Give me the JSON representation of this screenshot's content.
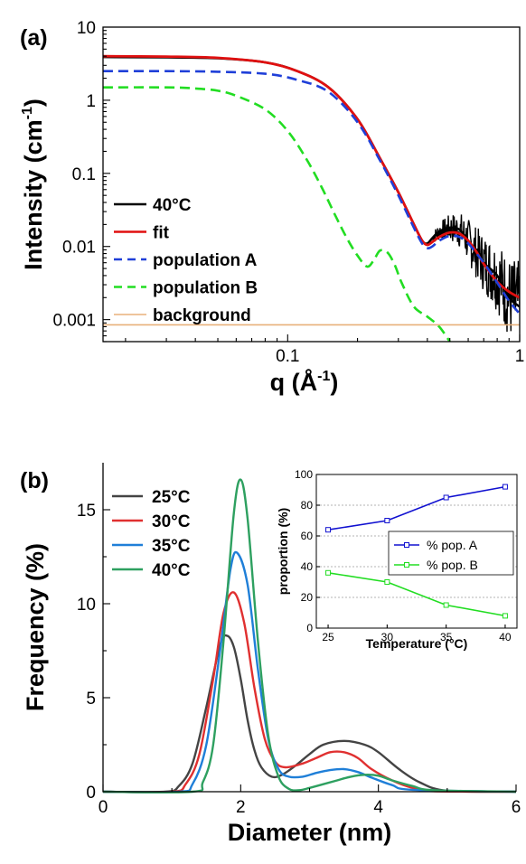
{
  "chart_data": [
    {
      "panel_label": "(a)",
      "type": "line",
      "xscale": "log",
      "yscale": "log",
      "xlabel": "q (Å-1)",
      "ylabel": "Intensity (cm-1)",
      "xlabel_main": "q (Å",
      "xlabel_sup": "-1",
      "xlabel_end": ")",
      "ylabel_main": "Intensity (cm",
      "ylabel_sup": "-1",
      "ylabel_end": ")",
      "xlim": [
        0.016,
        1
      ],
      "ylim": [
        0.0005,
        10
      ],
      "xticks": [
        {
          "v": 0.1,
          "label": "0.1"
        },
        {
          "v": 1,
          "label": "1"
        }
      ],
      "yticks": [
        {
          "v": 0.001,
          "label": "0.001"
        },
        {
          "v": 0.01,
          "label": "0.01"
        },
        {
          "v": 0.1,
          "label": "0.1"
        },
        {
          "v": 1,
          "label": "1"
        },
        {
          "v": 10,
          "label": "10"
        }
      ],
      "legend_position": "left",
      "series": [
        {
          "name": "40°C",
          "color": "#000000",
          "dash": "solid",
          "x": [
            0.016,
            0.03,
            0.05,
            0.08,
            0.11,
            0.15,
            0.2,
            0.25,
            0.3,
            0.35,
            0.38,
            0.4,
            0.42,
            0.45,
            0.5,
            0.55,
            0.6,
            0.7,
            0.8,
            0.9,
            1.0
          ],
          "y": [
            3.9,
            3.85,
            3.75,
            3.3,
            2.5,
            1.5,
            0.55,
            0.16,
            0.055,
            0.02,
            0.012,
            0.011,
            0.013,
            0.016,
            0.018,
            0.017,
            0.012,
            0.006,
            0.004,
            0.002,
            0.0015
          ]
        },
        {
          "name": "fit",
          "color": "#e01010",
          "dash": "solid",
          "x": [
            0.016,
            0.03,
            0.05,
            0.08,
            0.11,
            0.15,
            0.2,
            0.25,
            0.3,
            0.35,
            0.38,
            0.4,
            0.42,
            0.45,
            0.5,
            0.55,
            0.6,
            0.65,
            0.7,
            0.8,
            0.9,
            1.0
          ],
          "y": [
            4.0,
            3.95,
            3.8,
            3.3,
            2.5,
            1.5,
            0.55,
            0.16,
            0.055,
            0.02,
            0.012,
            0.0105,
            0.0115,
            0.0135,
            0.0155,
            0.015,
            0.012,
            0.0085,
            0.0058,
            0.0033,
            0.0024,
            0.002
          ]
        },
        {
          "name": "population A",
          "color": "#1f3fd8",
          "dash": "dashed",
          "x": [
            0.016,
            0.03,
            0.05,
            0.08,
            0.11,
            0.15,
            0.2,
            0.25,
            0.3,
            0.35,
            0.38,
            0.4,
            0.42,
            0.45,
            0.5,
            0.55,
            0.6,
            0.7,
            0.8,
            0.9,
            1.0
          ],
          "y": [
            2.5,
            2.5,
            2.45,
            2.3,
            1.9,
            1.3,
            0.5,
            0.15,
            0.05,
            0.018,
            0.011,
            0.0095,
            0.01,
            0.012,
            0.014,
            0.0135,
            0.011,
            0.006,
            0.0032,
            0.0018,
            0.0012
          ]
        },
        {
          "name": "population B",
          "color": "#22dd22",
          "dash": "dashed",
          "x": [
            0.016,
            0.03,
            0.04,
            0.05,
            0.06,
            0.08,
            0.1,
            0.12,
            0.14,
            0.16,
            0.18,
            0.2,
            0.22,
            0.235,
            0.25,
            0.27,
            0.29,
            0.31,
            0.35,
            0.4,
            0.45,
            0.5
          ],
          "y": [
            1.5,
            1.5,
            1.45,
            1.35,
            1.15,
            0.75,
            0.38,
            0.16,
            0.065,
            0.027,
            0.013,
            0.0075,
            0.0053,
            0.0065,
            0.0088,
            0.0082,
            0.0055,
            0.0032,
            0.0015,
            0.0011,
            0.0008,
            0.0005
          ]
        },
        {
          "name": "background",
          "color": "#e8b07a",
          "dash": "solid",
          "x": [
            0.016,
            1.0
          ],
          "y": [
            0.00085,
            0.00085
          ]
        }
      ]
    },
    {
      "panel_label": "(b)",
      "type": "line",
      "xlabel": "Diameter (nm)",
      "ylabel": "Frequency (%)",
      "xlim": [
        0,
        6
      ],
      "ylim": [
        0,
        17.5
      ],
      "xticks": [
        {
          "v": 0,
          "label": "0"
        },
        {
          "v": 2,
          "label": "2"
        },
        {
          "v": 4,
          "label": "4"
        },
        {
          "v": 6,
          "label": "6"
        }
      ],
      "yticks": [
        {
          "v": 0,
          "label": "0"
        },
        {
          "v": 5,
          "label": "5"
        },
        {
          "v": 10,
          "label": "10"
        },
        {
          "v": 15,
          "label": "15"
        }
      ],
      "legend_position": "top-left",
      "series": [
        {
          "name": "25°C",
          "color": "#444444",
          "x": [
            0,
            0.9,
            1.1,
            1.3,
            1.5,
            1.7,
            1.8,
            1.9,
            2.0,
            2.1,
            2.2,
            2.3,
            2.45,
            2.6,
            2.8,
            3.0,
            3.2,
            3.5,
            3.8,
            4.0,
            4.3,
            4.6,
            5.0,
            6.0
          ],
          "y": [
            0,
            0,
            0.3,
            1.5,
            4.5,
            7.8,
            8.3,
            7.7,
            6.0,
            3.8,
            2.2,
            1.3,
            0.8,
            0.9,
            1.4,
            2.0,
            2.5,
            2.7,
            2.5,
            2.1,
            1.2,
            0.5,
            0.05,
            0
          ]
        },
        {
          "name": "30°C",
          "color": "#e03030",
          "x": [
            0,
            1.0,
            1.2,
            1.4,
            1.6,
            1.75,
            1.9,
            2.05,
            2.2,
            2.35,
            2.5,
            2.65,
            2.9,
            3.1,
            3.3,
            3.5,
            3.7,
            3.9,
            4.2,
            4.5,
            4.8,
            6.0
          ],
          "y": [
            0,
            0,
            0.4,
            2.0,
            6.0,
            9.5,
            10.6,
            9.0,
            5.5,
            2.8,
            1.6,
            1.3,
            1.5,
            1.8,
            2.1,
            2.1,
            1.8,
            1.2,
            0.6,
            0.2,
            0.03,
            0
          ]
        },
        {
          "name": "35°C",
          "color": "#1f7fd8",
          "x": [
            0,
            1.1,
            1.3,
            1.5,
            1.7,
            1.85,
            1.95,
            2.1,
            2.25,
            2.4,
            2.55,
            2.7,
            2.9,
            3.1,
            3.3,
            3.5,
            3.7,
            3.9,
            4.2,
            4.5,
            6.0
          ],
          "y": [
            0,
            0,
            0.4,
            2.5,
            7.5,
            11.8,
            12.7,
            11.0,
            6.5,
            2.8,
            1.2,
            0.8,
            0.8,
            1.0,
            1.15,
            1.2,
            1.05,
            0.75,
            0.35,
            0.1,
            0
          ]
        },
        {
          "name": "40°C",
          "color": "#2ea060",
          "x": [
            0,
            1.3,
            1.45,
            1.6,
            1.75,
            1.9,
            2.0,
            2.1,
            2.25,
            2.4,
            2.55,
            2.7,
            2.85,
            3.0,
            3.2,
            3.4,
            3.6,
            3.8,
            4.0,
            4.2,
            4.5,
            4.8,
            6.0
          ],
          "y": [
            0,
            0,
            0.5,
            2.5,
            8.0,
            14.8,
            16.6,
            14.5,
            8.0,
            3.0,
            0.8,
            0.15,
            0.08,
            0.2,
            0.4,
            0.6,
            0.8,
            0.9,
            0.85,
            0.6,
            0.3,
            0.08,
            0
          ]
        }
      ]
    },
    {
      "panel_label": "inset",
      "type": "line",
      "xlabel": "Temperature (°C)",
      "ylabel": "proportion (%)",
      "xlim": [
        24,
        41
      ],
      "ylim": [
        0,
        100
      ],
      "xticks": [
        {
          "v": 25,
          "label": "25"
        },
        {
          "v": 30,
          "label": "30"
        },
        {
          "v": 35,
          "label": "35"
        },
        {
          "v": 40,
          "label": "40"
        }
      ],
      "yticks": [
        {
          "v": 0,
          "label": "0"
        },
        {
          "v": 20,
          "label": "20"
        },
        {
          "v": 40,
          "label": "40"
        },
        {
          "v": 60,
          "label": "60"
        },
        {
          "v": 80,
          "label": "80"
        },
        {
          "v": 100,
          "label": "100"
        }
      ],
      "grid": true,
      "legend_position": "right",
      "series": [
        {
          "name": "% pop. A",
          "color": "#1010d0",
          "x": [
            25,
            30,
            35,
            40
          ],
          "y": [
            64,
            70,
            85,
            92
          ]
        },
        {
          "name": "% pop. B",
          "color": "#22dd22",
          "x": [
            25,
            30,
            35,
            40
          ],
          "y": [
            36,
            30,
            15,
            8
          ]
        }
      ]
    }
  ]
}
